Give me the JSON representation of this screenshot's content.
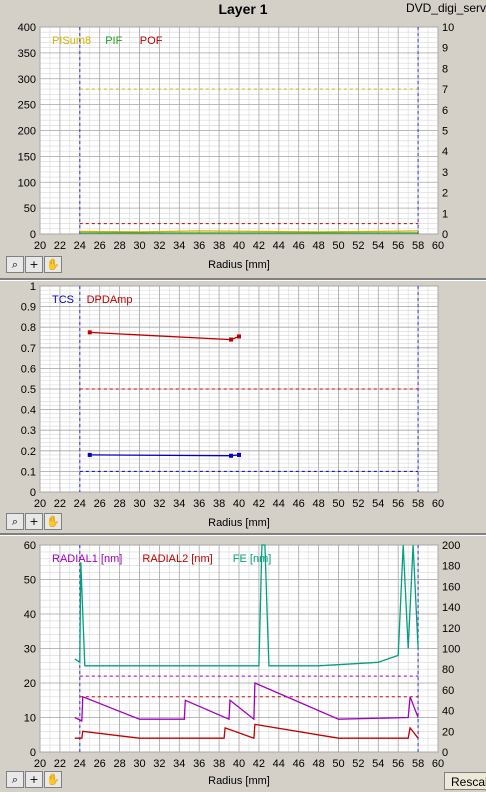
{
  "window": {
    "title": "Layer 1",
    "program": "DVD_digi_serv"
  },
  "xlabel": "Radius [mm]",
  "rescale_label": "Rescale",
  "toolbar_icons": [
    "zoom-icon",
    "crosshair-icon",
    "hand-pan-icon"
  ],
  "colors": {
    "plot_bg": "#ffffff",
    "grid": "#c0c0c0",
    "panel_bg": "#d4d0c8"
  },
  "chart_data": [
    {
      "type": "line",
      "x_ticks": [
        20,
        22,
        24,
        26,
        28,
        30,
        32,
        34,
        36,
        38,
        40,
        42,
        44,
        46,
        48,
        50,
        52,
        54,
        56,
        58,
        60
      ],
      "y_left_ticks": [
        0,
        50,
        100,
        150,
        200,
        250,
        300,
        350,
        400
      ],
      "y_right_ticks": [
        0,
        1,
        2,
        3,
        4,
        5,
        6,
        7,
        8,
        9,
        10
      ],
      "xlim": [
        20,
        60
      ],
      "ylim": [
        0,
        400
      ],
      "y2lim": [
        0,
        10
      ],
      "legend": [
        {
          "name": "PISum8",
          "color": "#d4b000"
        },
        {
          "name": "PIF",
          "color": "#22a022"
        },
        {
          "name": "POF",
          "color": "#c00000"
        }
      ],
      "vlines": [
        24,
        58
      ],
      "hlines": [
        {
          "y": 280,
          "color": "#d4b000"
        },
        {
          "y": 20,
          "color": "#c00000"
        }
      ],
      "series": [
        {
          "name": "PISum8",
          "color": "#d4b000",
          "x": [
            24,
            30,
            36,
            42,
            48,
            54,
            58
          ],
          "y": [
            5,
            4,
            6,
            5,
            4,
            5,
            6
          ]
        },
        {
          "name": "PIF",
          "color": "#22a022",
          "x": [
            24,
            30,
            36,
            42,
            48,
            54,
            58
          ],
          "y": [
            2,
            2,
            2,
            2,
            2,
            2,
            2
          ]
        }
      ]
    },
    {
      "type": "line",
      "x_ticks": [
        20,
        22,
        24,
        26,
        28,
        30,
        32,
        34,
        36,
        38,
        40,
        42,
        44,
        46,
        48,
        50,
        52,
        54,
        56,
        58,
        60
      ],
      "y_left_ticks": [
        0,
        0.1,
        0.2,
        0.3,
        0.4,
        0.5,
        0.6,
        0.7,
        0.8,
        0.9,
        1.0
      ],
      "xlim": [
        20,
        60
      ],
      "ylim": [
        0,
        1.0
      ],
      "legend": [
        {
          "name": "TCS",
          "color": "#0000c0"
        },
        {
          "name": "DPDAmp",
          "color": "#c00000"
        }
      ],
      "vlines": [
        24,
        58
      ],
      "hlines": [
        {
          "y": 0.5,
          "color": "#c00000"
        },
        {
          "y": 0.1,
          "color": "#0000c0"
        }
      ],
      "series": [
        {
          "name": "TCS",
          "color": "#0000c0",
          "x": [
            25,
            39.2,
            40
          ],
          "y": [
            0.18,
            0.176,
            0.18
          ]
        },
        {
          "name": "DPDAmp",
          "color": "#c00000",
          "x": [
            25,
            39.2,
            40
          ],
          "y": [
            0.775,
            0.74,
            0.755
          ]
        }
      ]
    },
    {
      "type": "line",
      "x_ticks": [
        20,
        22,
        24,
        26,
        28,
        30,
        32,
        34,
        36,
        38,
        40,
        42,
        44,
        46,
        48,
        50,
        52,
        54,
        56,
        58,
        60
      ],
      "y_left_ticks": [
        0,
        10,
        20,
        30,
        40,
        50,
        60
      ],
      "y_right_ticks": [
        0,
        20,
        40,
        60,
        80,
        100,
        120,
        140,
        160,
        180,
        200
      ],
      "xlim": [
        20,
        60
      ],
      "ylim": [
        0,
        60
      ],
      "y2lim": [
        0,
        200
      ],
      "legend": [
        {
          "name": "RADIAL1 [nm]",
          "color": "#a000c0"
        },
        {
          "name": "RADIAL2 [nm]",
          "color": "#c00000"
        },
        {
          "name": "FE [nm]",
          "color": "#00a080"
        }
      ],
      "vlines": [
        24,
        58
      ],
      "hlines": [
        {
          "y": 22,
          "color": "#a000c0"
        },
        {
          "y": 16,
          "color": "#c00000"
        }
      ],
      "series": [
        {
          "name": "RADIAL1 [nm]",
          "color": "#a000c0",
          "x": [
            23.5,
            24.2,
            24.3,
            30,
            34.5,
            34.6,
            39,
            39.1,
            41.5,
            41.6,
            50,
            57,
            57.2,
            58
          ],
          "y": [
            10,
            9,
            16,
            9.5,
            9.5,
            15,
            9.5,
            15,
            9.5,
            20,
            9.5,
            10,
            16,
            10
          ]
        },
        {
          "name": "RADIAL2 [nm]",
          "color": "#c00000",
          "x": [
            23.5,
            24.2,
            24.3,
            30,
            38.5,
            38.6,
            41.5,
            41.6,
            50,
            57,
            57.2,
            58
          ],
          "y": [
            4,
            4,
            6,
            4,
            4,
            7,
            4,
            8,
            4,
            4,
            7,
            4
          ]
        },
        {
          "name": "FE [nm]",
          "color": "#00a080",
          "x": [
            23.5,
            24,
            24.1,
            24.5,
            30,
            36,
            42,
            42.3,
            42.6,
            43,
            48,
            54,
            56,
            56.5,
            57,
            57.5,
            58
          ],
          "y": [
            27,
            26,
            55,
            25,
            25,
            25,
            25,
            60,
            60,
            25,
            25,
            26,
            28,
            60,
            30,
            60,
            30
          ]
        }
      ]
    }
  ]
}
